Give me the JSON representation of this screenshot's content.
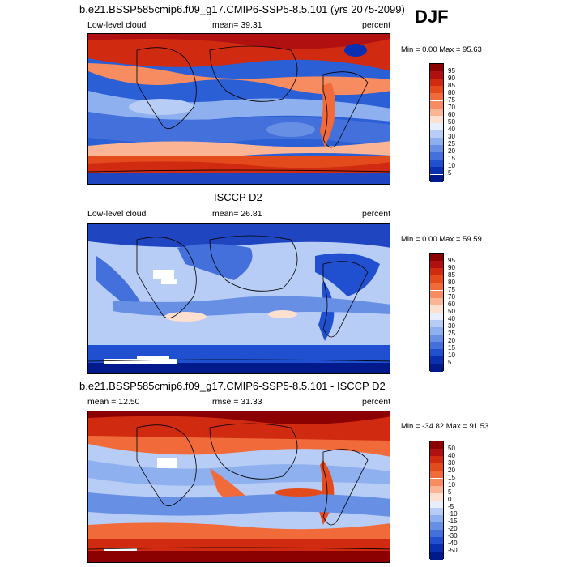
{
  "season": "DJF",
  "panels": [
    {
      "id": "model",
      "title": "b.e21.BSSP585cmip6.f09_g17.CMIP6-SSP5-8.5.101 (yrs 2075-2099)",
      "left_label": "Low-level cloud",
      "center_label": "mean=  39.31",
      "right_label": "percent",
      "minmax": "Min =   0.00 Max =  95.63",
      "colorbar": {
        "labels": [
          "95",
          "90",
          "85",
          "80",
          "75",
          "70",
          "60",
          "50",
          "40",
          "30",
          "25",
          "20",
          "15",
          "10",
          "5"
        ],
        "colors": [
          "#8b0000",
          "#b01010",
          "#d02a10",
          "#e34a1c",
          "#f06a3a",
          "#f78c60",
          "#fbb494",
          "#fde0cf",
          "#e8eefb",
          "#b8cdf5",
          "#8fb0ef",
          "#6790e5",
          "#4470dc",
          "#2050d0",
          "#0a2fb0",
          "#001a8c"
        ]
      }
    },
    {
      "id": "obs",
      "title": "ISCCP D2",
      "left_label": "Low-level cloud",
      "center_label": "mean=  26.81",
      "right_label": "percent",
      "minmax": "Min =   0.00 Max =  59.59",
      "colorbar": {
        "labels": [
          "95",
          "90",
          "85",
          "80",
          "75",
          "70",
          "60",
          "50",
          "40",
          "30",
          "25",
          "20",
          "15",
          "10",
          "5"
        ],
        "colors": [
          "#8b0000",
          "#b01010",
          "#d02a10",
          "#e34a1c",
          "#f06a3a",
          "#f78c60",
          "#fbb494",
          "#fde0cf",
          "#e8eefb",
          "#b8cdf5",
          "#8fb0ef",
          "#6790e5",
          "#4470dc",
          "#2050d0",
          "#0a2fb0",
          "#001a8c"
        ]
      }
    },
    {
      "id": "diff",
      "title": "b.e21.BSSP585cmip6.f09_g17.CMIP6-SSP5-8.5.101 - ISCCP D2",
      "left_label": "mean =   12.50",
      "center_label": "rmse =  31.33",
      "right_label": "percent",
      "minmax": "Min = -34.82 Max =  91.53",
      "colorbar": {
        "labels": [
          "50",
          "40",
          "30",
          "20",
          "15",
          "10",
          "5",
          "0",
          "-5",
          "-10",
          "-15",
          "-20",
          "-30",
          "-40",
          "-50"
        ],
        "colors": [
          "#8b0000",
          "#b01010",
          "#d02a10",
          "#e34a1c",
          "#f06a3a",
          "#f78c60",
          "#fbb494",
          "#fde0cf",
          "#e8eefb",
          "#b8cdf5",
          "#8fb0ef",
          "#6790e5",
          "#4470dc",
          "#2050d0",
          "#0a2fb0",
          "#001a8c"
        ]
      }
    }
  ]
}
